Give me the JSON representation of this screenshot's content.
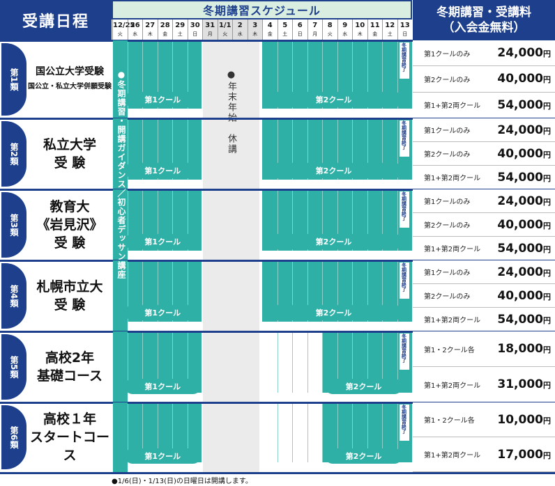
{
  "header": {
    "left_title": "受講日程",
    "schedule_title": "冬期講習スケジュール",
    "fee_title_line1": "冬期講習・受講料",
    "fee_title_line2": "（入会金無料）"
  },
  "days": [
    {
      "d": "12/25",
      "w": "火"
    },
    {
      "d": "26",
      "w": "水"
    },
    {
      "d": "27",
      "w": "木"
    },
    {
      "d": "28",
      "w": "金"
    },
    {
      "d": "29",
      "w": "土"
    },
    {
      "d": "30",
      "w": "日"
    },
    {
      "d": "31",
      "w": "月"
    },
    {
      "d": "1/1",
      "w": "火"
    },
    {
      "d": "2",
      "w": "水"
    },
    {
      "d": "3",
      "w": "木"
    },
    {
      "d": "4",
      "w": "金"
    },
    {
      "d": "5",
      "w": "土"
    },
    {
      "d": "6",
      "w": "日"
    },
    {
      "d": "7",
      "w": "月"
    },
    {
      "d": "8",
      "w": "火"
    },
    {
      "d": "9",
      "w": "水"
    },
    {
      "d": "10",
      "w": "木"
    },
    {
      "d": "11",
      "w": "金"
    },
    {
      "d": "12",
      "w": "土"
    },
    {
      "d": "13",
      "w": "日"
    }
  ],
  "guidance_label": "●冬期講習・開講ガイダンス／初心者デッサン講座",
  "holiday_label": "●年末年始　休講",
  "end_label": "冬期講習終了",
  "rows": [
    {
      "badge": "第1類",
      "title_lines": [
        "国公立大学受験",
        "国公立・私立大学併願受験"
      ],
      "pill1": "第1クール",
      "pill2": "第2クール",
      "prices": [
        {
          "label": "第1クールのみ",
          "value": "24,000",
          "unit": "円"
        },
        {
          "label": "第2クールのみ",
          "value": "40,000",
          "unit": "円"
        },
        {
          "label": "第1+第2両クール",
          "value": "54,000",
          "unit": "円"
        }
      ]
    },
    {
      "badge": "第2類",
      "title_lines": [
        "私立大学",
        "受 験"
      ],
      "pill1": "第1クール",
      "pill2": "第2クール",
      "prices": [
        {
          "label": "第1クールのみ",
          "value": "24,000",
          "unit": "円"
        },
        {
          "label": "第2クールのみ",
          "value": "40,000",
          "unit": "円"
        },
        {
          "label": "第1+第2両クール",
          "value": "54,000",
          "unit": "円"
        }
      ]
    },
    {
      "badge": "第3類",
      "title_lines": [
        "教育大",
        "《岩見沢》",
        "受 験"
      ],
      "pill1": "第1クール",
      "pill2": "第2クール",
      "prices": [
        {
          "label": "第1クールのみ",
          "value": "24,000",
          "unit": "円"
        },
        {
          "label": "第2クールのみ",
          "value": "40,000",
          "unit": "円"
        },
        {
          "label": "第1+第2両クール",
          "value": "54,000",
          "unit": "円"
        }
      ]
    },
    {
      "badge": "第4類",
      "title_lines": [
        "札幌市立大",
        "受 験"
      ],
      "pill1": "第1クール",
      "pill2": "第2クール",
      "prices": [
        {
          "label": "第1クールのみ",
          "value": "24,000",
          "unit": "円"
        },
        {
          "label": "第2クールのみ",
          "value": "40,000",
          "unit": "円"
        },
        {
          "label": "第1+第2両クール",
          "value": "54,000",
          "unit": "円"
        }
      ]
    },
    {
      "badge": "第5類",
      "title_lines": [
        "高校2年",
        "基礎コース"
      ],
      "pill1": "第1クール",
      "pill2": "第2クール",
      "prices": [
        {
          "label": "第1・2クール各",
          "value": "18,000",
          "unit": "円"
        },
        {
          "label": "第1+第2両クール",
          "value": "31,000",
          "unit": "円"
        }
      ]
    },
    {
      "badge": "第6類",
      "title_lines": [
        "高校１年",
        "スタートコース"
      ],
      "pill1": "第1クール",
      "pill2": "第2クール",
      "prices": [
        {
          "label": "第1・2クール各",
          "value": "10,000",
          "unit": "円"
        },
        {
          "label": "第1+第2両クール",
          "value": "17,000",
          "unit": "円"
        }
      ]
    }
  ],
  "footnote": "●1/6(日)・1/13(日)の日曜日は開講します。"
}
